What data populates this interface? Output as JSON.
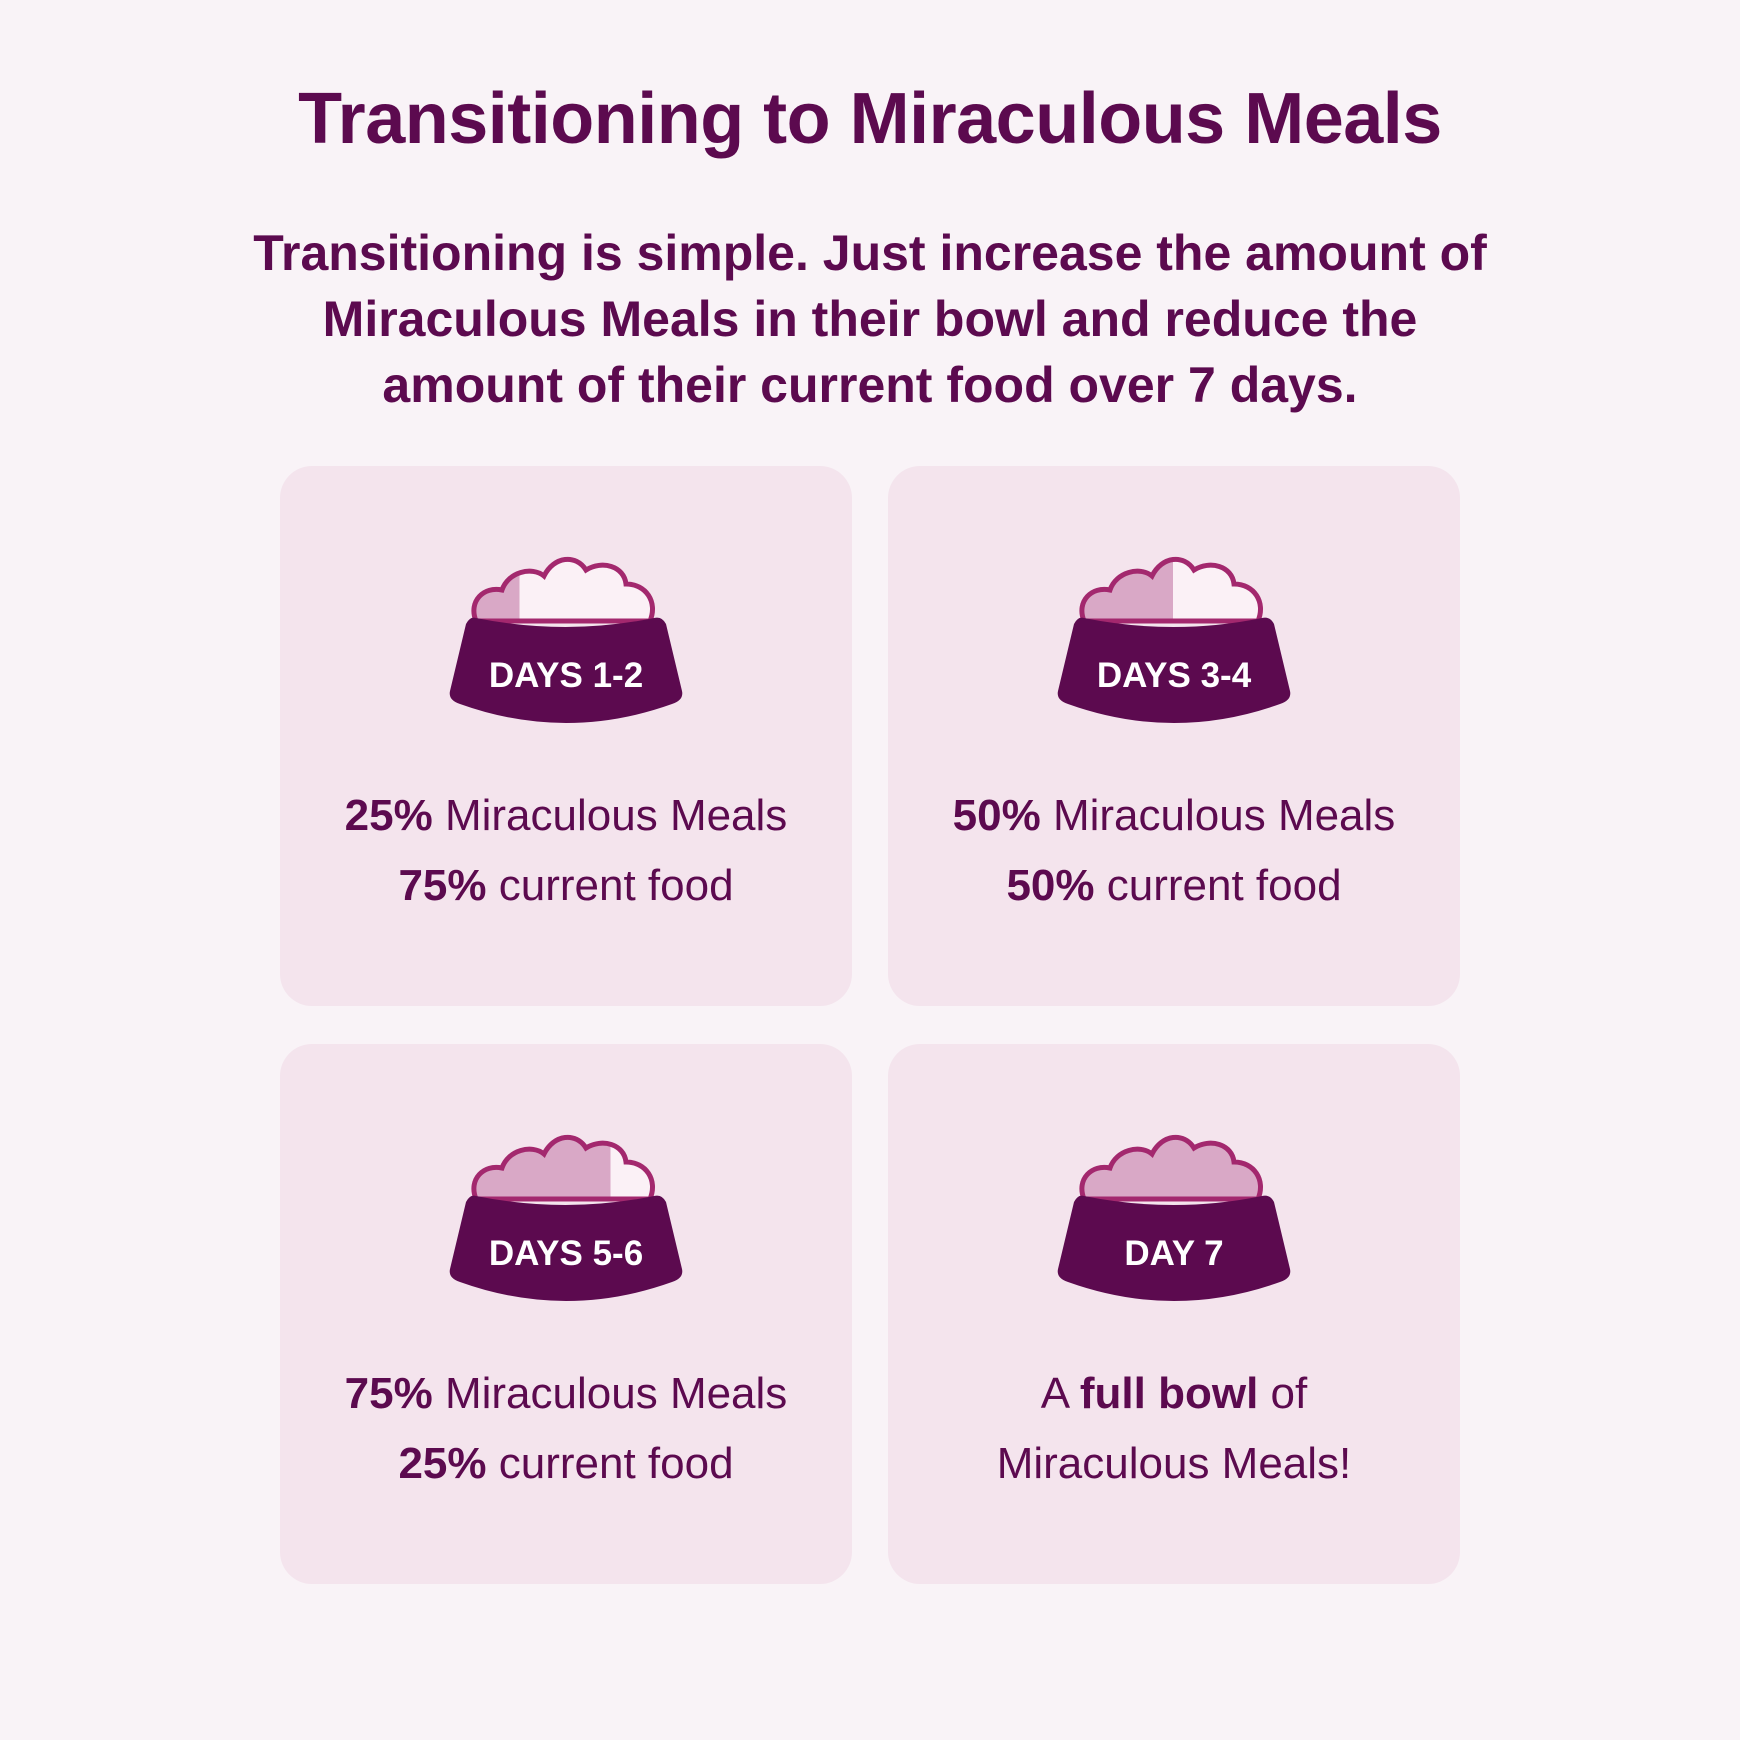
{
  "title": "Transitioning to Miraculous Meals",
  "intro": "Transitioning is simple. Just increase the amount of Miraculous Meals in their bowl and reduce the amount of their current food over 7 days.",
  "colors": {
    "background": "#f9f3f7",
    "card": "#f4e4ed",
    "brand": "#5c0a4f",
    "food_new": "#d9a8c6",
    "food_current": "#fbf1f6",
    "food_outline": "#a3286e"
  },
  "cards": [
    {
      "label": "DAYS 1-2",
      "icon": "food-bowl-icon",
      "new_food_fraction": 0.25,
      "line1": {
        "strong": "25%",
        "text": " Miraculous Meals"
      },
      "line2": {
        "strong": "75%",
        "text": " current food"
      }
    },
    {
      "label": "DAYS 3-4",
      "icon": "food-bowl-icon",
      "new_food_fraction": 0.5,
      "line1": {
        "strong": "50%",
        "text": " Miraculous Meals"
      },
      "line2": {
        "strong": "50%",
        "text": " current food"
      }
    },
    {
      "label": "DAYS 5-6",
      "icon": "food-bowl-icon",
      "new_food_fraction": 0.75,
      "line1": {
        "strong": "75%",
        "text": " Miraculous Meals"
      },
      "line2": {
        "strong": "25%",
        "text": " current food"
      }
    },
    {
      "label": "DAY 7",
      "icon": "food-bowl-icon",
      "new_food_fraction": 1,
      "line1": {
        "pre": "A ",
        "strong": "full bowl",
        "text": " of"
      },
      "line2": {
        "text": "Miraculous Meals!"
      }
    }
  ]
}
